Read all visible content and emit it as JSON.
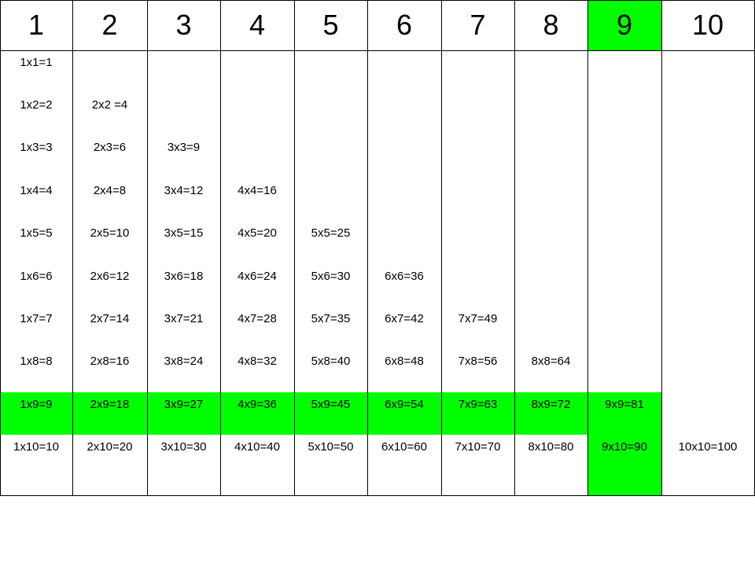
{
  "highlight_color": "#00ff00",
  "highlight_column": 9,
  "highlight_row": 9,
  "columns": [
    {
      "header": "1",
      "entries": [
        "1x1=1",
        "1x2=2",
        "1x3=3",
        "1x4=4",
        "1x5=5",
        "1x6=6",
        "1x7=7",
        "1x8=8",
        "1x9=9",
        "1x10=10"
      ]
    },
    {
      "header": "2",
      "entries": [
        "",
        "2x2 =4",
        "2x3=6",
        "2x4=8",
        "2x5=10",
        "2x6=12",
        "2x7=14",
        "2x8=16",
        "2x9=18",
        "2x10=20"
      ]
    },
    {
      "header": "3",
      "entries": [
        "",
        "",
        "3x3=9",
        "3x4=12",
        "3x5=15",
        "3x6=18",
        "3x7=21",
        "3x8=24",
        "3x9=27",
        "3x10=30"
      ]
    },
    {
      "header": "4",
      "entries": [
        "",
        "",
        "",
        "4x4=16",
        "4x5=20",
        "4x6=24",
        "4x7=28",
        "4x8=32",
        "4x9=36",
        "4x10=40"
      ]
    },
    {
      "header": "5",
      "entries": [
        "",
        "",
        "",
        "",
        "5x5=25",
        "5x6=30",
        "5x7=35",
        "5x8=40",
        "5x9=45",
        "5x10=50"
      ]
    },
    {
      "header": "6",
      "entries": [
        "",
        "",
        "",
        "",
        "",
        "6x6=36",
        "6x7=42",
        "6x8=48",
        "6x9=54",
        "6x10=60"
      ]
    },
    {
      "header": "7",
      "entries": [
        "",
        "",
        "",
        "",
        "",
        "",
        "7x7=49",
        "7x8=56",
        "7x9=63",
        "7x10=70"
      ]
    },
    {
      "header": "8",
      "entries": [
        "",
        "",
        "",
        "",
        "",
        "",
        "",
        "8x8=64",
        "8x9=72",
        "8x10=80"
      ]
    },
    {
      "header": "9",
      "entries": [
        "",
        "",
        "",
        "",
        "",
        "",
        "",
        "",
        "9x9=81",
        "9x10=90"
      ]
    },
    {
      "header": "10",
      "entries": [
        "",
        "",
        "",
        "",
        "",
        "",
        "",
        "",
        "",
        "10x10=100"
      ]
    }
  ]
}
